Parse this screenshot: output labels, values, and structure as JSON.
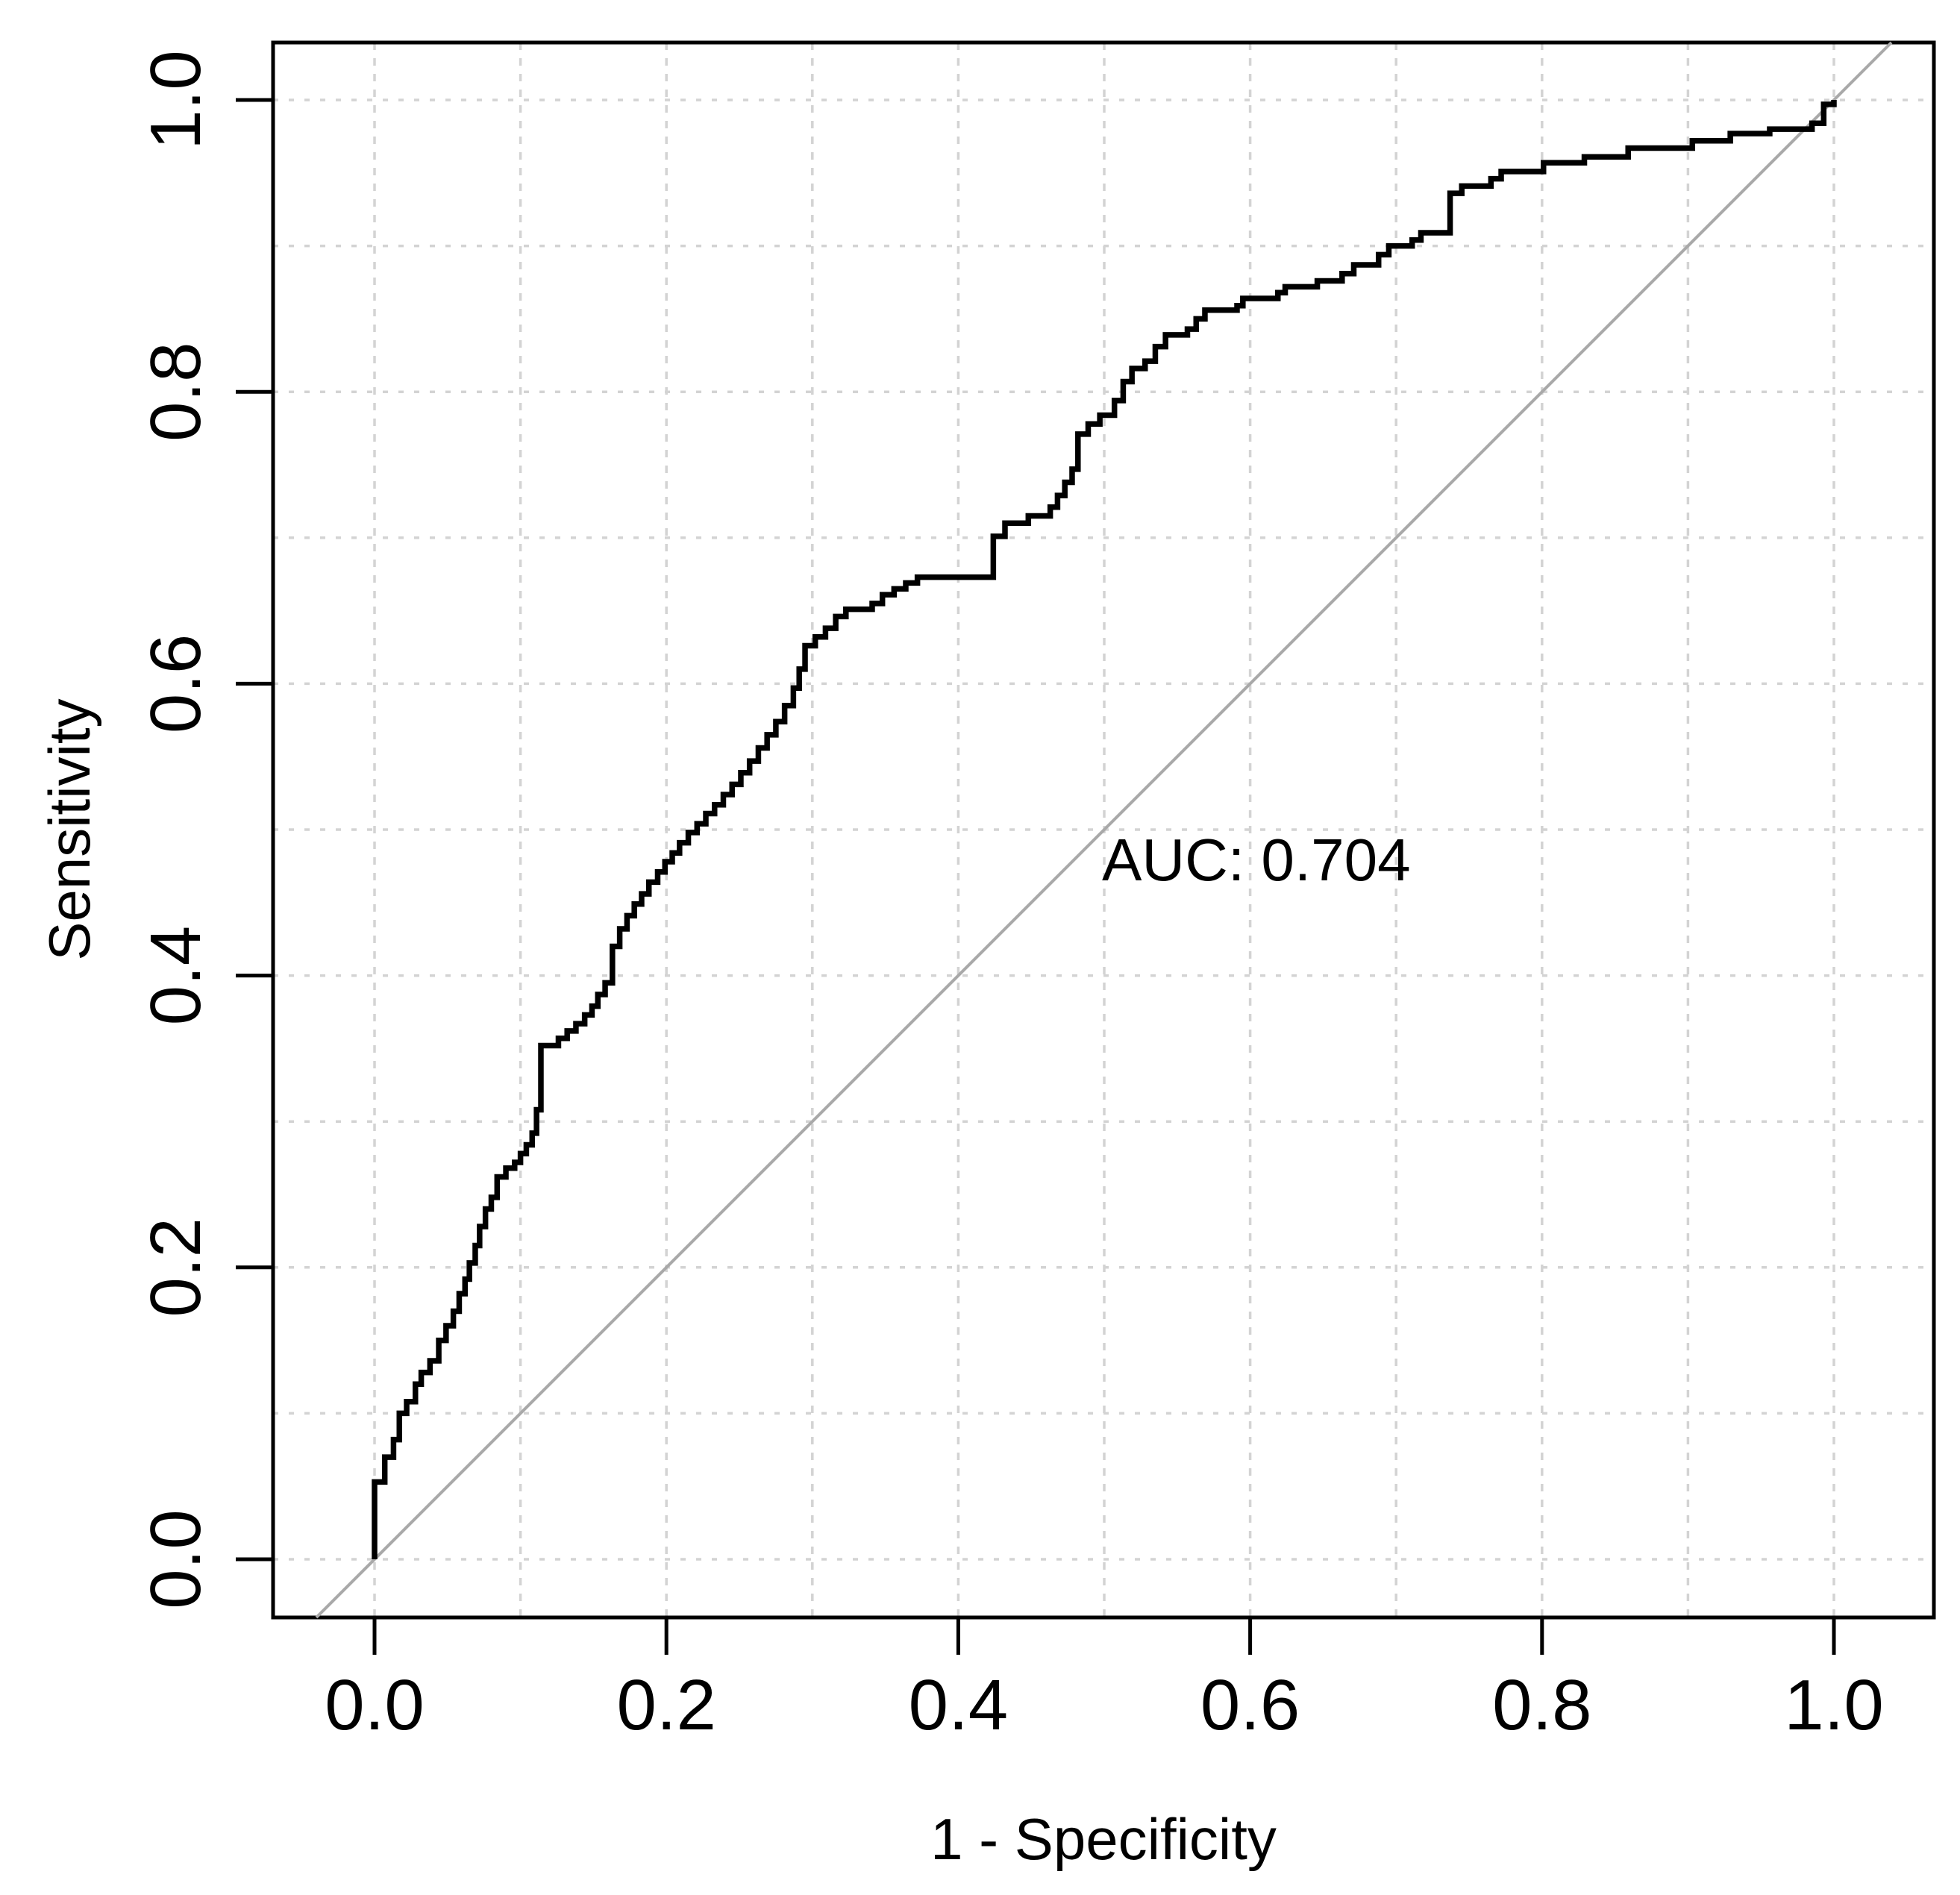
{
  "chart_data": {
    "type": "line",
    "subtype": "roc-step-curve",
    "title": "",
    "xlabel": "1 - Specificity",
    "ylabel": "Sensitivity",
    "xlim": [
      0,
      1
    ],
    "ylim": [
      0,
      1
    ],
    "x_ticks": {
      "values": [
        0,
        0.2,
        0.4,
        0.6,
        0.8,
        1.0
      ],
      "labels": [
        "0.0",
        "0.2",
        "0.4",
        "0.6",
        "0.8",
        "1.0"
      ]
    },
    "y_ticks": {
      "values": [
        0,
        0.2,
        0.4,
        0.6,
        0.8,
        1.0
      ],
      "labels": [
        "0.0",
        "0.2",
        "0.4",
        "0.6",
        "0.8",
        "1.0"
      ]
    },
    "grid": {
      "on": true,
      "interval": 0.1,
      "style": "dotted",
      "color": "#d3d3d3"
    },
    "annotation": {
      "text": "AUC: 0.704",
      "x": 0.499,
      "y": 0.466
    },
    "reference_line": {
      "name": "chance-diagonal",
      "from": [
        0,
        0
      ],
      "to": [
        1,
        1
      ],
      "color": "#a9a9a9"
    },
    "legend": {
      "visible": false
    },
    "series": [
      {
        "name": "ROC curve",
        "color": "#000000",
        "start": [
          0,
          0
        ],
        "steps": [
          [
            0.0,
            0.053
          ],
          [
            0.007,
            0.07
          ],
          [
            0.013,
            0.082
          ],
          [
            0.017,
            0.1
          ],
          [
            0.022,
            0.108
          ],
          [
            0.028,
            0.12
          ],
          [
            0.032,
            0.128
          ],
          [
            0.038,
            0.136
          ],
          [
            0.044,
            0.15
          ],
          [
            0.049,
            0.16
          ],
          [
            0.054,
            0.17
          ],
          [
            0.058,
            0.182
          ],
          [
            0.062,
            0.192
          ],
          [
            0.065,
            0.203
          ],
          [
            0.069,
            0.215
          ],
          [
            0.072,
            0.228
          ],
          [
            0.076,
            0.24
          ],
          [
            0.08,
            0.248
          ],
          [
            0.084,
            0.262
          ],
          [
            0.09,
            0.268
          ],
          [
            0.096,
            0.272
          ],
          [
            0.1,
            0.278
          ],
          [
            0.104,
            0.284
          ],
          [
            0.108,
            0.292
          ],
          [
            0.111,
            0.308
          ],
          [
            0.114,
            0.352
          ],
          [
            0.126,
            0.357
          ],
          [
            0.132,
            0.362
          ],
          [
            0.138,
            0.367
          ],
          [
            0.144,
            0.373
          ],
          [
            0.149,
            0.379
          ],
          [
            0.153,
            0.387
          ],
          [
            0.158,
            0.395
          ],
          [
            0.163,
            0.42
          ],
          [
            0.168,
            0.432
          ],
          [
            0.173,
            0.441
          ],
          [
            0.178,
            0.449
          ],
          [
            0.183,
            0.456
          ],
          [
            0.188,
            0.464
          ],
          [
            0.194,
            0.471
          ],
          [
            0.199,
            0.478
          ],
          [
            0.204,
            0.484
          ],
          [
            0.209,
            0.491
          ],
          [
            0.215,
            0.498
          ],
          [
            0.221,
            0.504
          ],
          [
            0.227,
            0.511
          ],
          [
            0.233,
            0.517
          ],
          [
            0.239,
            0.524
          ],
          [
            0.245,
            0.531
          ],
          [
            0.251,
            0.539
          ],
          [
            0.257,
            0.547
          ],
          [
            0.263,
            0.556
          ],
          [
            0.269,
            0.565
          ],
          [
            0.275,
            0.574
          ],
          [
            0.281,
            0.585
          ],
          [
            0.287,
            0.597
          ],
          [
            0.291,
            0.61
          ],
          [
            0.295,
            0.626
          ],
          [
            0.302,
            0.632
          ],
          [
            0.309,
            0.638
          ],
          [
            0.316,
            0.646
          ],
          [
            0.323,
            0.651
          ],
          [
            0.341,
            0.655
          ],
          [
            0.348,
            0.661
          ],
          [
            0.356,
            0.665
          ],
          [
            0.364,
            0.669
          ],
          [
            0.372,
            0.673
          ],
          [
            0.424,
            0.701
          ],
          [
            0.432,
            0.71
          ],
          [
            0.448,
            0.715
          ],
          [
            0.463,
            0.721
          ],
          [
            0.468,
            0.729
          ],
          [
            0.473,
            0.738
          ],
          [
            0.478,
            0.747
          ],
          [
            0.482,
            0.771
          ],
          [
            0.489,
            0.778
          ],
          [
            0.497,
            0.784
          ],
          [
            0.507,
            0.794
          ],
          [
            0.513,
            0.807
          ],
          [
            0.519,
            0.816
          ],
          [
            0.528,
            0.821
          ],
          [
            0.535,
            0.831
          ],
          [
            0.542,
            0.839
          ],
          [
            0.557,
            0.843
          ],
          [
            0.563,
            0.85
          ],
          [
            0.569,
            0.856
          ],
          [
            0.591,
            0.859
          ],
          [
            0.595,
            0.864
          ],
          [
            0.619,
            0.868
          ],
          [
            0.624,
            0.872
          ],
          [
            0.646,
            0.876
          ],
          [
            0.663,
            0.881
          ],
          [
            0.671,
            0.887
          ],
          [
            0.688,
            0.894
          ],
          [
            0.695,
            0.9
          ],
          [
            0.711,
            0.904
          ],
          [
            0.717,
            0.909
          ],
          [
            0.737,
            0.936
          ],
          [
            0.745,
            0.941
          ],
          [
            0.765,
            0.946
          ],
          [
            0.772,
            0.951
          ],
          [
            0.801,
            0.957
          ],
          [
            0.829,
            0.961
          ],
          [
            0.859,
            0.967
          ],
          [
            0.903,
            0.972
          ],
          [
            0.929,
            0.977
          ],
          [
            0.956,
            0.98
          ],
          [
            0.985,
            0.984
          ],
          [
            0.993,
            0.997
          ],
          [
            1.0,
            1.0
          ]
        ]
      }
    ],
    "colors": {
      "curve": "#000000",
      "diagonal": "#a9a9a9",
      "grid": "#d3d3d3",
      "axis": "#000000",
      "background": "#ffffff"
    }
  }
}
